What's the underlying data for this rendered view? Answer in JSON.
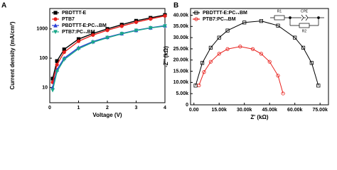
{
  "chart_data": [
    {
      "type": "line",
      "panel": "A",
      "x_label": "Voltage (V)",
      "y_label": "Current density (mA/cm²)",
      "log_y": true,
      "xlim": [
        0,
        4
      ],
      "ylim": [
        3,
        5000
      ],
      "xticks": [
        0,
        1,
        2,
        3,
        4
      ],
      "yticks": [
        10,
        100,
        1000
      ],
      "legend": "upper left",
      "x": [
        0.1,
        0.25,
        0.5,
        1,
        1.5,
        2,
        2.5,
        3,
        3.5,
        4
      ],
      "series": [
        {
          "name": "PBDTTT-E",
          "color": "#000000",
          "marker": "square",
          "values": [
            20,
            80,
            200,
            450,
            700,
            1000,
            1400,
            1900,
            2400,
            3000
          ]
        },
        {
          "name": "PTB7",
          "color": "#e8201c",
          "marker": "circle",
          "values": [
            15,
            60,
            160,
            380,
            620,
            900,
            1250,
            1700,
            2200,
            2800
          ]
        },
        {
          "name": "PBDTTT-E:PC₇₁BM",
          "color": "#2a3fd6",
          "marker": "triangle",
          "values": [
            10,
            40,
            100,
            230,
            370,
            520,
            700,
            900,
            1100,
            1300
          ]
        },
        {
          "name": "PTB7:PC₇₁BM",
          "color": "#1aa88a",
          "marker": "triangle-down",
          "values": [
            8,
            35,
            90,
            210,
            350,
            500,
            680,
            880,
            1080,
            1250
          ]
        }
      ]
    },
    {
      "type": "scatter",
      "panel": "B",
      "x_label": "Z' (kΩ)",
      "y_label": "-Z'' (kΩ)",
      "xlim": [
        -2000,
        80000
      ],
      "ylim": [
        0,
        43000
      ],
      "xticks": [
        {
          "value": 0,
          "label": "0.00"
        },
        {
          "value": 15000,
          "label": "15.00k"
        },
        {
          "value": 30000,
          "label": "30.00k"
        },
        {
          "value": 45000,
          "label": "45.00k"
        },
        {
          "value": 60000,
          "label": "60.00k"
        },
        {
          "value": 75000,
          "label": "75.00k"
        }
      ],
      "yticks": [
        0,
        {
          "value": 5000,
          "label": "5.00k"
        },
        {
          "value": 10000,
          "label": "10.00k"
        },
        {
          "value": 15000,
          "label": "15.00k"
        },
        {
          "value": 20000,
          "label": "20.00k"
        },
        {
          "value": 25000,
          "label": "25.00k"
        },
        {
          "value": 30000,
          "label": "30.00k"
        },
        {
          "value": 35000,
          "label": "35.00k"
        },
        {
          "value": 40000,
          "label": "40.00k"
        }
      ],
      "legend": "upper left",
      "circuit_labels": [
        "R1",
        "CPE",
        "R2"
      ],
      "series": [
        {
          "name": "PBDTTT-E:PC₇₁BM",
          "color": "#000000",
          "marker": "open-square",
          "x": [
            1000,
            5000,
            10000,
            15000,
            20000,
            30000,
            40000,
            50000,
            60000,
            65000,
            70000,
            74000
          ],
          "values": [
            8602,
            18708,
            25495,
            30000,
            33166,
            36742,
            37417,
            35355,
            30000,
            25495,
            18708,
            8602
          ]
        },
        {
          "name": "PTB7:PC₇₁BM",
          "color": "#e8201c",
          "marker": "open-circle",
          "x": [
            3000,
            6000,
            10000,
            15000,
            20000,
            27500,
            35000,
            40000,
            45000,
            50000,
            53000
          ],
          "values": [
            8703,
            14620,
            19229,
            22798,
            24895,
            26000,
            24895,
            22798,
            19229,
            13029,
            5074
          ]
        }
      ]
    }
  ]
}
